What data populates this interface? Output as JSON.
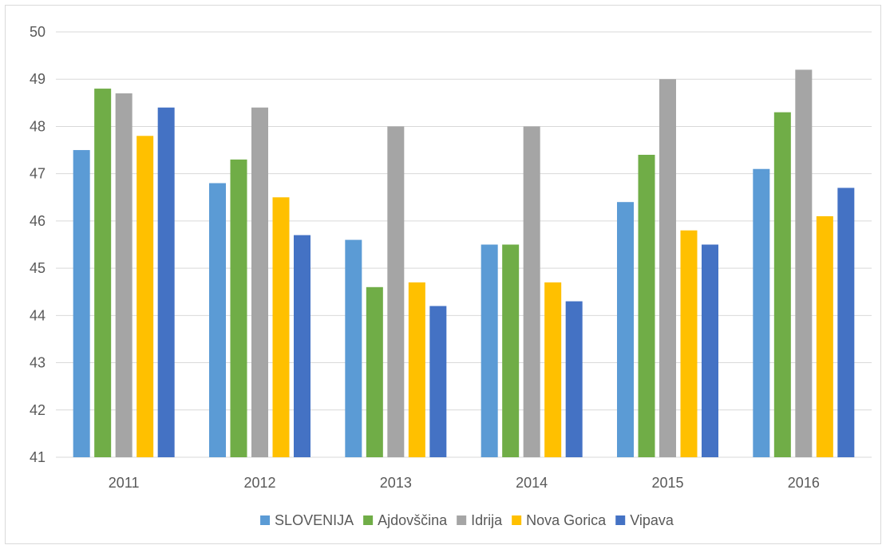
{
  "chart_data": {
    "type": "bar",
    "title": "",
    "xlabel": "",
    "ylabel": "",
    "categories": [
      "2011",
      "2012",
      "2013",
      "2014",
      "2015",
      "2016"
    ],
    "ylim": [
      41,
      50
    ],
    "yticks": [
      41,
      42,
      43,
      44,
      45,
      46,
      47,
      48,
      49,
      50
    ],
    "grid": true,
    "legend_position": "bottom",
    "series": [
      {
        "name": "SLOVENIJA",
        "color": "#5B9BD5",
        "values": [
          47.5,
          46.8,
          45.6,
          45.5,
          46.4,
          47.1
        ]
      },
      {
        "name": "Ajdovščina",
        "color": "#70AD47",
        "values": [
          48.8,
          47.3,
          44.6,
          45.5,
          47.4,
          48.3
        ]
      },
      {
        "name": "Idrija",
        "color": "#A5A5A5",
        "values": [
          48.7,
          48.4,
          48.0,
          48.0,
          49.0,
          49.2
        ]
      },
      {
        "name": "Nova Gorica",
        "color": "#FFC000",
        "values": [
          47.8,
          46.5,
          44.7,
          44.7,
          45.8,
          46.1
        ]
      },
      {
        "name": "Vipava",
        "color": "#4472C4",
        "values": [
          48.4,
          45.7,
          44.2,
          44.3,
          45.5,
          46.7
        ]
      }
    ]
  }
}
